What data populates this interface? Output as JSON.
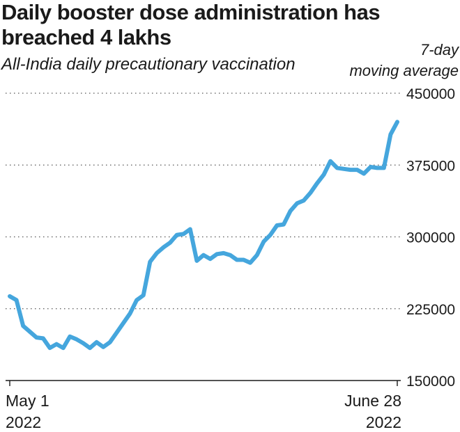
{
  "chart_data": {
    "type": "line",
    "title": "Daily booster dose administration has breached 4 lakhs",
    "subtitle": "All-India daily precautionary vaccination",
    "ylabel": "7-day\nmoving average",
    "ylim": [
      150000,
      450000
    ],
    "yticks": [
      {
        "value": 450000,
        "label": "450000"
      },
      {
        "value": 375000,
        "label": "375000"
      },
      {
        "value": 300000,
        "label": "300000"
      },
      {
        "value": 225000,
        "label": "225000"
      },
      {
        "value": 150000,
        "label": "150000"
      }
    ],
    "xticks": [
      {
        "value": 0,
        "line1": "May 1",
        "line2": "2022"
      },
      {
        "value": 58,
        "line1": "June 28",
        "line2": "2022"
      }
    ],
    "grid": true,
    "line_color": "#45a6dd",
    "x": [
      0,
      1,
      2,
      3,
      4,
      5,
      6,
      7,
      8,
      9,
      10,
      11,
      12,
      13,
      14,
      15,
      16,
      17,
      18,
      19,
      20,
      21,
      22,
      23,
      24,
      25,
      26,
      27,
      28,
      29,
      30,
      31,
      32,
      33,
      34,
      35,
      36,
      37,
      38,
      39,
      40,
      41,
      42,
      43,
      44,
      45,
      46,
      47,
      48,
      49,
      50,
      51,
      52,
      53,
      54,
      55,
      56,
      57,
      58
    ],
    "values": [
      238000,
      234000,
      207000,
      201000,
      195000,
      194000,
      184000,
      188000,
      184000,
      196000,
      193000,
      189000,
      184000,
      190000,
      185000,
      190000,
      200000,
      210000,
      220000,
      234000,
      239000,
      274000,
      283000,
      289000,
      294000,
      302000,
      303000,
      308000,
      275000,
      281000,
      277000,
      282000,
      283000,
      281000,
      276000,
      276000,
      273000,
      281000,
      295000,
      302000,
      312000,
      313000,
      327000,
      335000,
      338000,
      346000,
      356000,
      365000,
      379000,
      372000,
      371000,
      370000,
      370000,
      366000,
      373000,
      372000,
      372000,
      407000,
      420000
    ]
  }
}
